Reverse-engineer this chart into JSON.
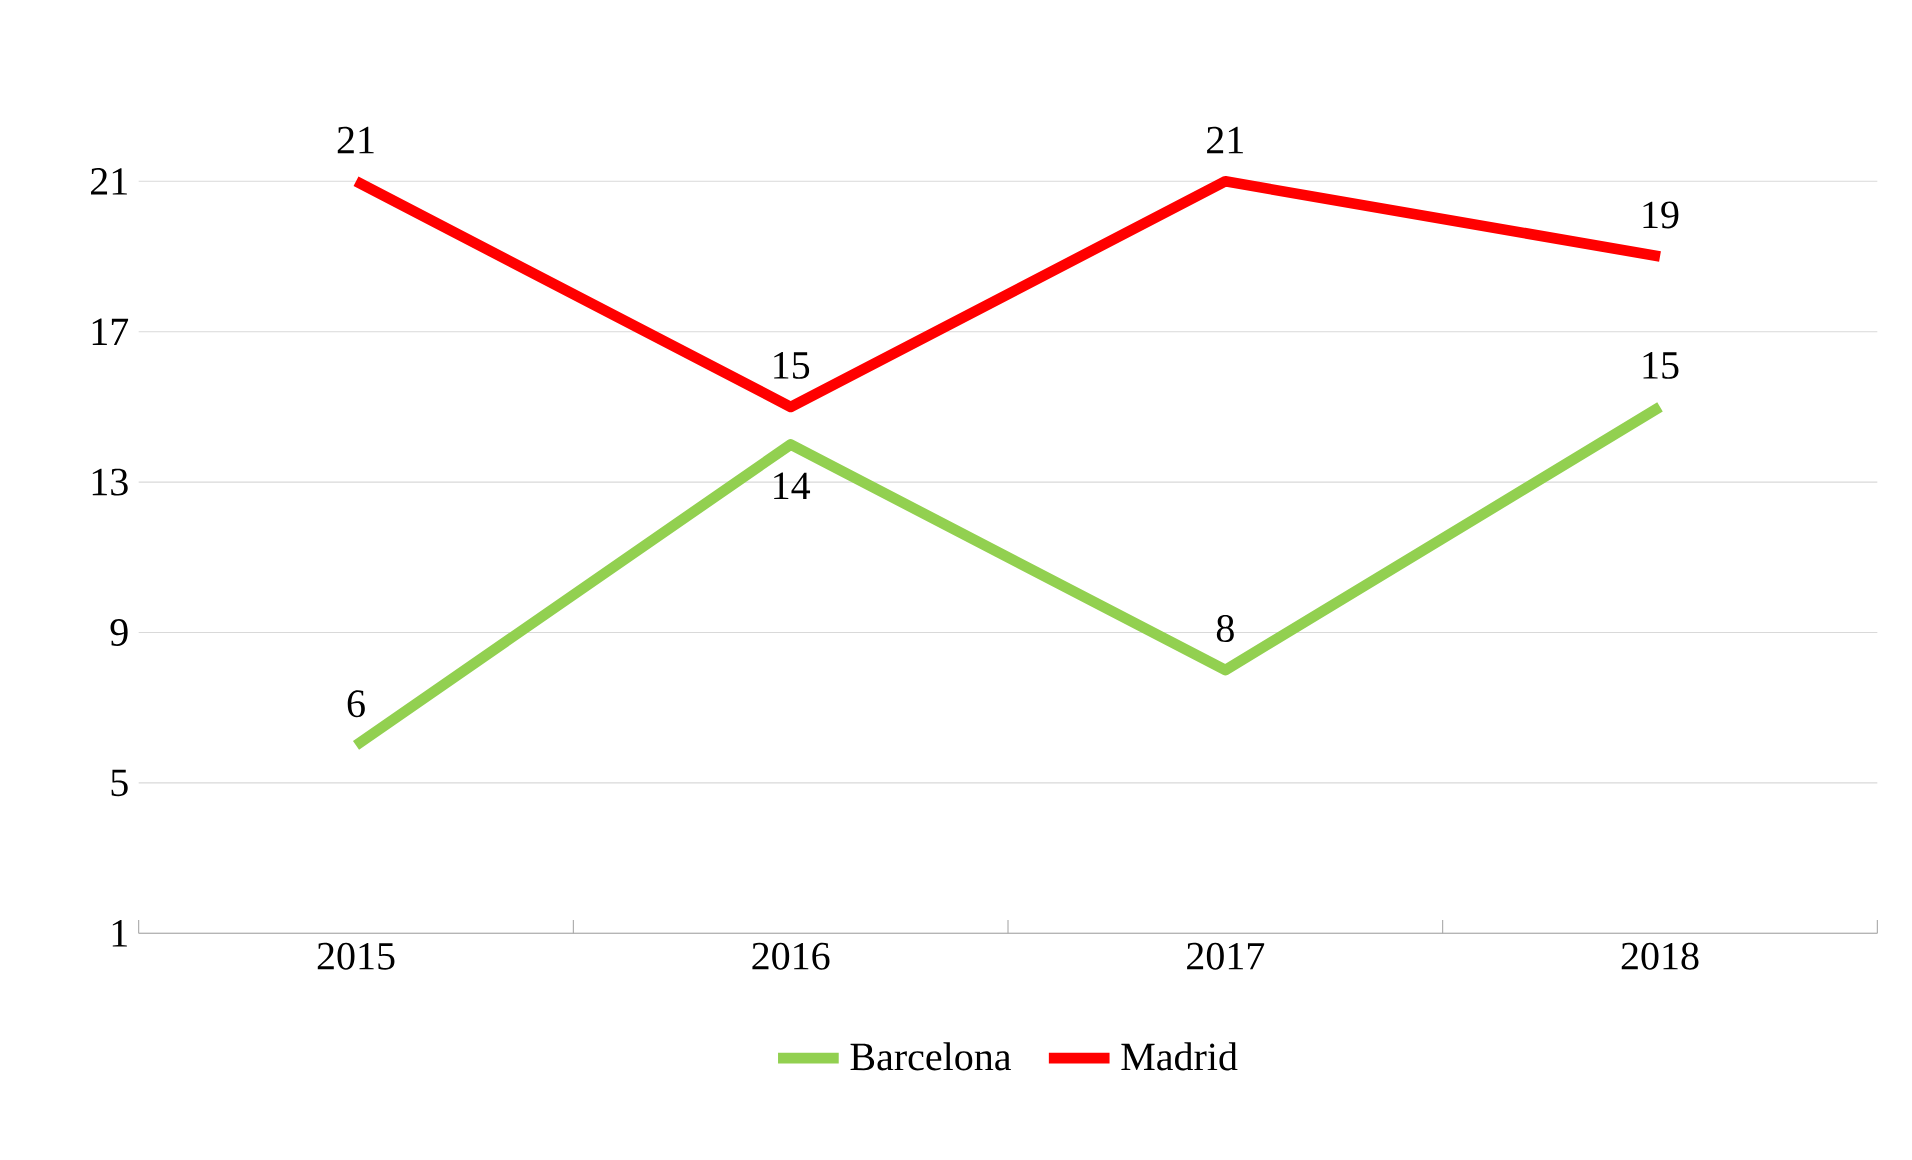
{
  "chart_data": {
    "type": "line",
    "categories": [
      "2015",
      "2016",
      "2017",
      "2018"
    ],
    "series": [
      {
        "name": "Barcelona",
        "color": "#92d050",
        "values": [
          6,
          14,
          8,
          15
        ]
      },
      {
        "name": "Madrid",
        "color": "#ff0000",
        "values": [
          21,
          15,
          21,
          19
        ]
      }
    ],
    "ylim": [
      1,
      21
    ],
    "yticks": [
      1,
      5,
      9,
      13,
      17,
      21
    ],
    "grid": "y",
    "legend": "bottom",
    "data_labels": true,
    "marker": "none",
    "line_style": "solid"
  }
}
